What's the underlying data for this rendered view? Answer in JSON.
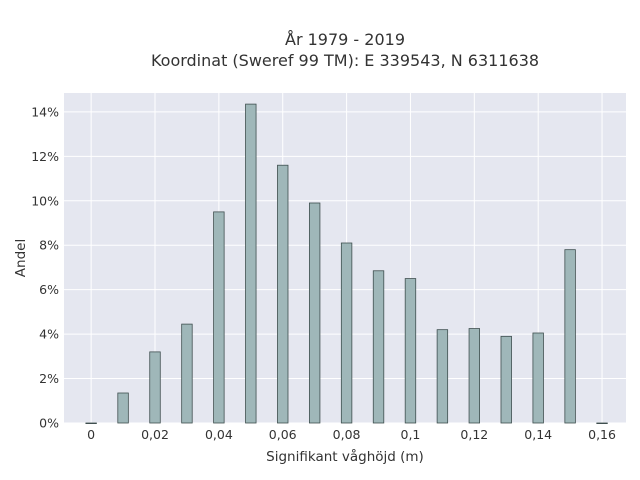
{
  "chart_data": {
    "type": "bar",
    "title": "År 1979 - 2019",
    "subtitle": "Koordinat (Sweref 99 TM): E 339543, N 6311638",
    "xlabel": "Signifikant våghöjd (m)",
    "ylabel": "Andel",
    "x": [
      0,
      0.01,
      0.02,
      0.03,
      0.04,
      0.05,
      0.06,
      0.07,
      0.08,
      0.09,
      0.1,
      0.11,
      0.12,
      0.13,
      0.14,
      0.15,
      0.16
    ],
    "values": [
      0.0,
      1.35,
      3.2,
      4.45,
      9.5,
      14.35,
      11.6,
      9.9,
      8.1,
      6.85,
      6.5,
      4.2,
      4.25,
      3.9,
      4.05,
      7.8,
      0.0
    ],
    "xlim": [
      -0.0085,
      0.1675
    ],
    "ylim": [
      0,
      14.85
    ],
    "x_ticks": [
      0,
      0.02,
      0.04,
      0.06,
      0.08,
      0.1,
      0.12,
      0.14,
      0.16
    ],
    "x_tick_labels": [
      "0",
      "0,02",
      "0,04",
      "0,06",
      "0,08",
      "0,1",
      "0,12",
      "0,14",
      "0,16"
    ],
    "y_ticks": [
      0,
      2,
      4,
      6,
      8,
      10,
      12,
      14
    ],
    "y_tick_labels": [
      "0%",
      "2%",
      "4%",
      "6%",
      "8%",
      "10%",
      "12%",
      "14%"
    ],
    "bar_width": 0.0033,
    "grid": true,
    "legend": "none",
    "colors": {
      "bar_fill": "#9fb7b9",
      "bar_stroke": "#3f4f4f",
      "plot_bg": "#e5e7f0",
      "grid": "#ffffff"
    }
  }
}
